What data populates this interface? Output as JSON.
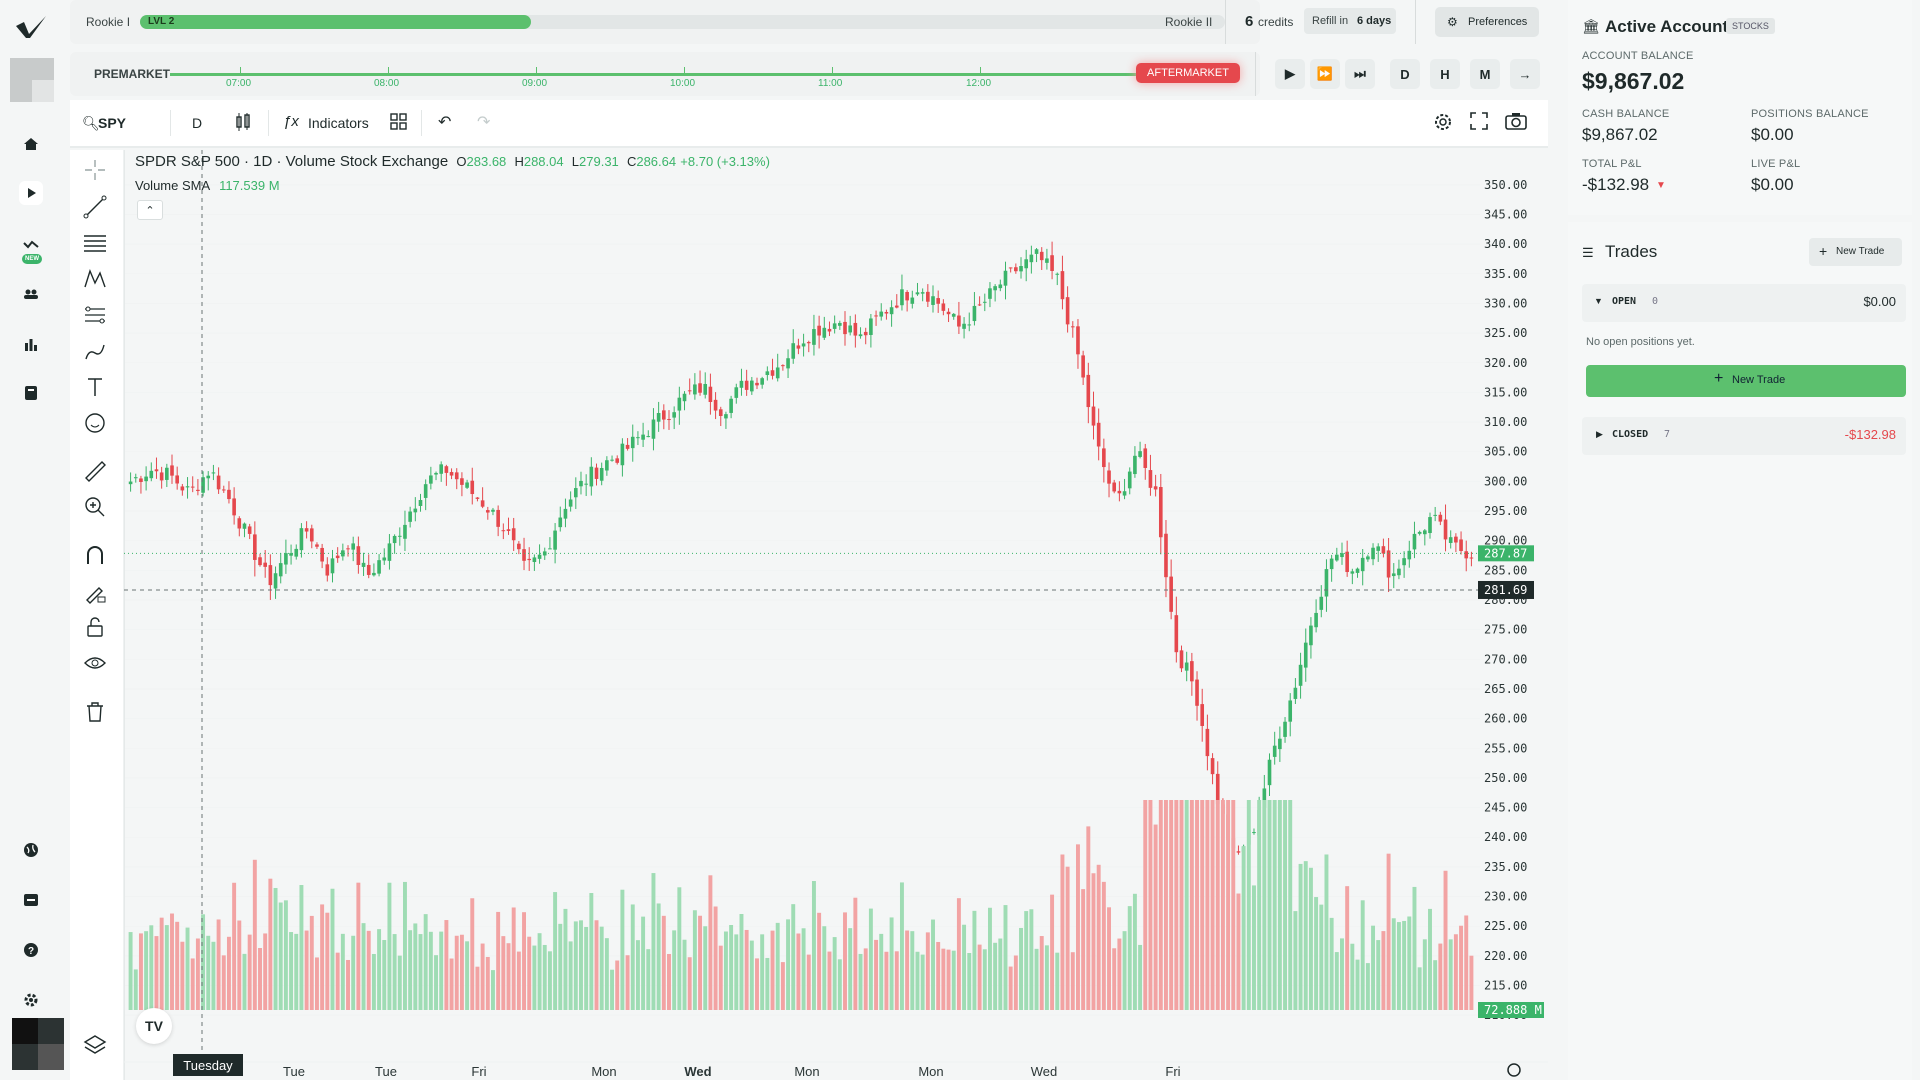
{
  "sidebar": {
    "items": [
      {
        "icon": "home-icon"
      },
      {
        "icon": "play-icon"
      },
      {
        "icon": "trend-icon",
        "badge": "NEW"
      },
      {
        "icon": "community-icon"
      },
      {
        "icon": "stats-icon"
      },
      {
        "icon": "journal-icon"
      }
    ],
    "bottom": [
      {
        "icon": "globe-icon"
      },
      {
        "icon": "store-icon"
      },
      {
        "icon": "help-icon"
      },
      {
        "icon": "settings-icon"
      }
    ]
  },
  "level": {
    "current": "Rookie I",
    "badge": "LVL 2",
    "progress": 0.36,
    "next": "Rookie II",
    "credits_count": "6",
    "credits_label": "credits",
    "refill_prefix": "Refill in",
    "refill_value": "6 days",
    "preferences": "Preferences"
  },
  "session": {
    "premarket": "PREMARKET",
    "aftermarket": "AFTERMARKET",
    "times": [
      "07:00",
      "08:00",
      "09:00",
      "10:00",
      "11:00",
      "12:00"
    ],
    "controls": [
      "D",
      "H",
      "M"
    ]
  },
  "toolbar": {
    "symbol": "SPY",
    "interval": "D",
    "indicators": "Indicators"
  },
  "legend": {
    "title": "SPDR S&P 500 · 1D · Volume Stock Exchange",
    "o_label": "O",
    "o": "283.68",
    "h_label": "H",
    "h": "288.04",
    "l_label": "L",
    "l": "279.31",
    "c_label": "C",
    "c": "286.64",
    "change": "+8.70 (+3.13%)",
    "sma_label": "Volume SMA",
    "sma_value": "117.539 M"
  },
  "price_tags": {
    "last": "287.87",
    "crosshair": "281.69",
    "volume": "72.888 M"
  },
  "x_axis": {
    "highlight": "Tuesday",
    "labels": [
      "Tue",
      "Tue",
      "Fri",
      "Mon",
      "Wed",
      "Mon",
      "Mon",
      "Wed",
      "Fri"
    ]
  },
  "chart_data": {
    "type": "candlestick",
    "title": "SPDR S&P 500 · 1D · Volume Stock Exchange",
    "ylim": [
      207.5,
      352.5
    ],
    "yticks": [
      350,
      345,
      340,
      335,
      330,
      325,
      320,
      315,
      310,
      305,
      300,
      295,
      290,
      285,
      280,
      275,
      270,
      265,
      260,
      255,
      250,
      245,
      240,
      235,
      230,
      225,
      220,
      215,
      210
    ],
    "anchors": [
      300,
      302,
      301,
      298,
      302,
      297,
      290,
      283,
      288,
      292,
      285,
      290,
      284,
      288,
      294,
      300,
      302,
      299,
      296,
      292,
      285,
      288,
      296,
      300,
      303,
      305,
      308,
      311,
      314,
      316,
      312,
      316,
      318,
      320,
      324,
      326,
      327,
      324,
      328,
      331,
      333,
      330,
      326,
      329,
      333,
      336,
      338,
      334,
      322,
      306,
      296,
      305,
      298,
      272,
      265,
      248,
      236,
      242,
      255,
      265,
      278,
      288,
      285,
      290,
      284,
      290,
      294,
      289,
      288
    ],
    "volume_sma": 117.539,
    "last_volume": 72.888,
    "ohlc_last": {
      "open": 283.68,
      "high": 288.04,
      "low": 279.31,
      "close": 286.64
    }
  },
  "account": {
    "title": "Active Account",
    "tag": "STOCKS",
    "balance_label": "ACCOUNT BALANCE",
    "balance": "$9,867.02",
    "cash_label": "CASH BALANCE",
    "cash": "$9,867.02",
    "positions_label": "POSITIONS BALANCE",
    "positions": "$0.00",
    "pnl_label": "TOTAL P&L",
    "pnl": "-$132.98",
    "live_label": "LIVE P&L",
    "live": "$0.00"
  },
  "trades": {
    "title": "Trades",
    "new_trade": "New Trade",
    "open_label": "OPEN",
    "open_count": "0",
    "open_value": "$0.00",
    "empty": "No open positions yet.",
    "new_trade_big": "New Trade",
    "closed_label": "CLOSED",
    "closed_count": "7",
    "closed_value": "-$132.98"
  },
  "colors": {
    "up": "#3bb46a",
    "down": "#e5484d",
    "vol_up": "#9fdcb4",
    "vol_down": "#f2a3a3",
    "accent": "#5cc06e"
  }
}
